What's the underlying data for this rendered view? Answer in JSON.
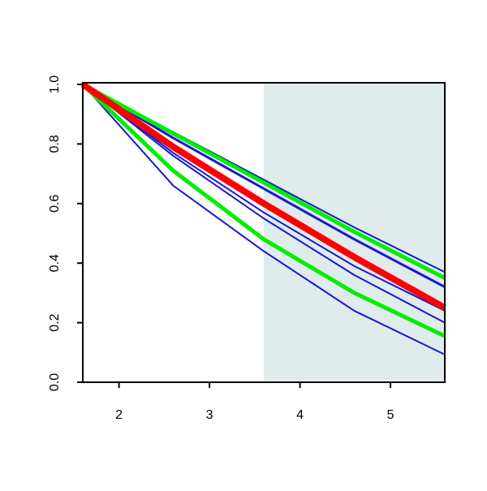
{
  "chart_data": {
    "type": "line",
    "x": [
      1.6,
      2.6,
      3.6,
      4.6,
      5.6
    ],
    "xlim": [
      1.6,
      5.6
    ],
    "xticks": [
      2,
      3,
      4,
      5
    ],
    "ylim": [
      0,
      1
    ],
    "yticks": [
      {
        "value": 0,
        "label": "0.0"
      },
      {
        "value": 0.2,
        "label": "0.2"
      },
      {
        "value": 0.4,
        "label": "0.4"
      },
      {
        "value": 0.6,
        "label": "0.6"
      },
      {
        "value": 0.8,
        "label": "0.8"
      },
      {
        "value": 1,
        "label": "1.0"
      }
    ],
    "highlight_xrange": [
      3.6,
      5.6
    ],
    "highlight_color": "#e0ecec",
    "series": [
      {
        "color": "#1818d8",
        "line_width": 2,
        "values": [
          1,
          0.84,
          0.68,
          0.52,
          0.37
        ]
      },
      {
        "color": "#1818d8",
        "line_width": 3,
        "values": [
          1,
          0.82,
          0.65,
          0.48,
          0.32
        ]
      },
      {
        "color": "#1818d8",
        "line_width": 2,
        "values": [
          1,
          0.77,
          0.57,
          0.39,
          0.24
        ]
      },
      {
        "color": "#1818d8",
        "line_width": 2,
        "values": [
          1,
          0.76,
          0.55,
          0.36,
          0.2
        ]
      },
      {
        "color": "#1818d8",
        "line_width": 2,
        "values": [
          1,
          0.66,
          0.44,
          0.24,
          0.093
        ]
      },
      {
        "color": "#00ee00",
        "line_width": 5,
        "values": [
          1,
          0.835,
          0.67,
          0.505,
          0.35
        ]
      },
      {
        "color": "#00ee00",
        "line_width": 5,
        "values": [
          1,
          0.71,
          0.48,
          0.3,
          0.155
        ]
      },
      {
        "color": "#ff0000",
        "line_width": 8,
        "values": [
          1,
          0.79,
          0.6,
          0.42,
          0.25
        ]
      }
    ]
  }
}
